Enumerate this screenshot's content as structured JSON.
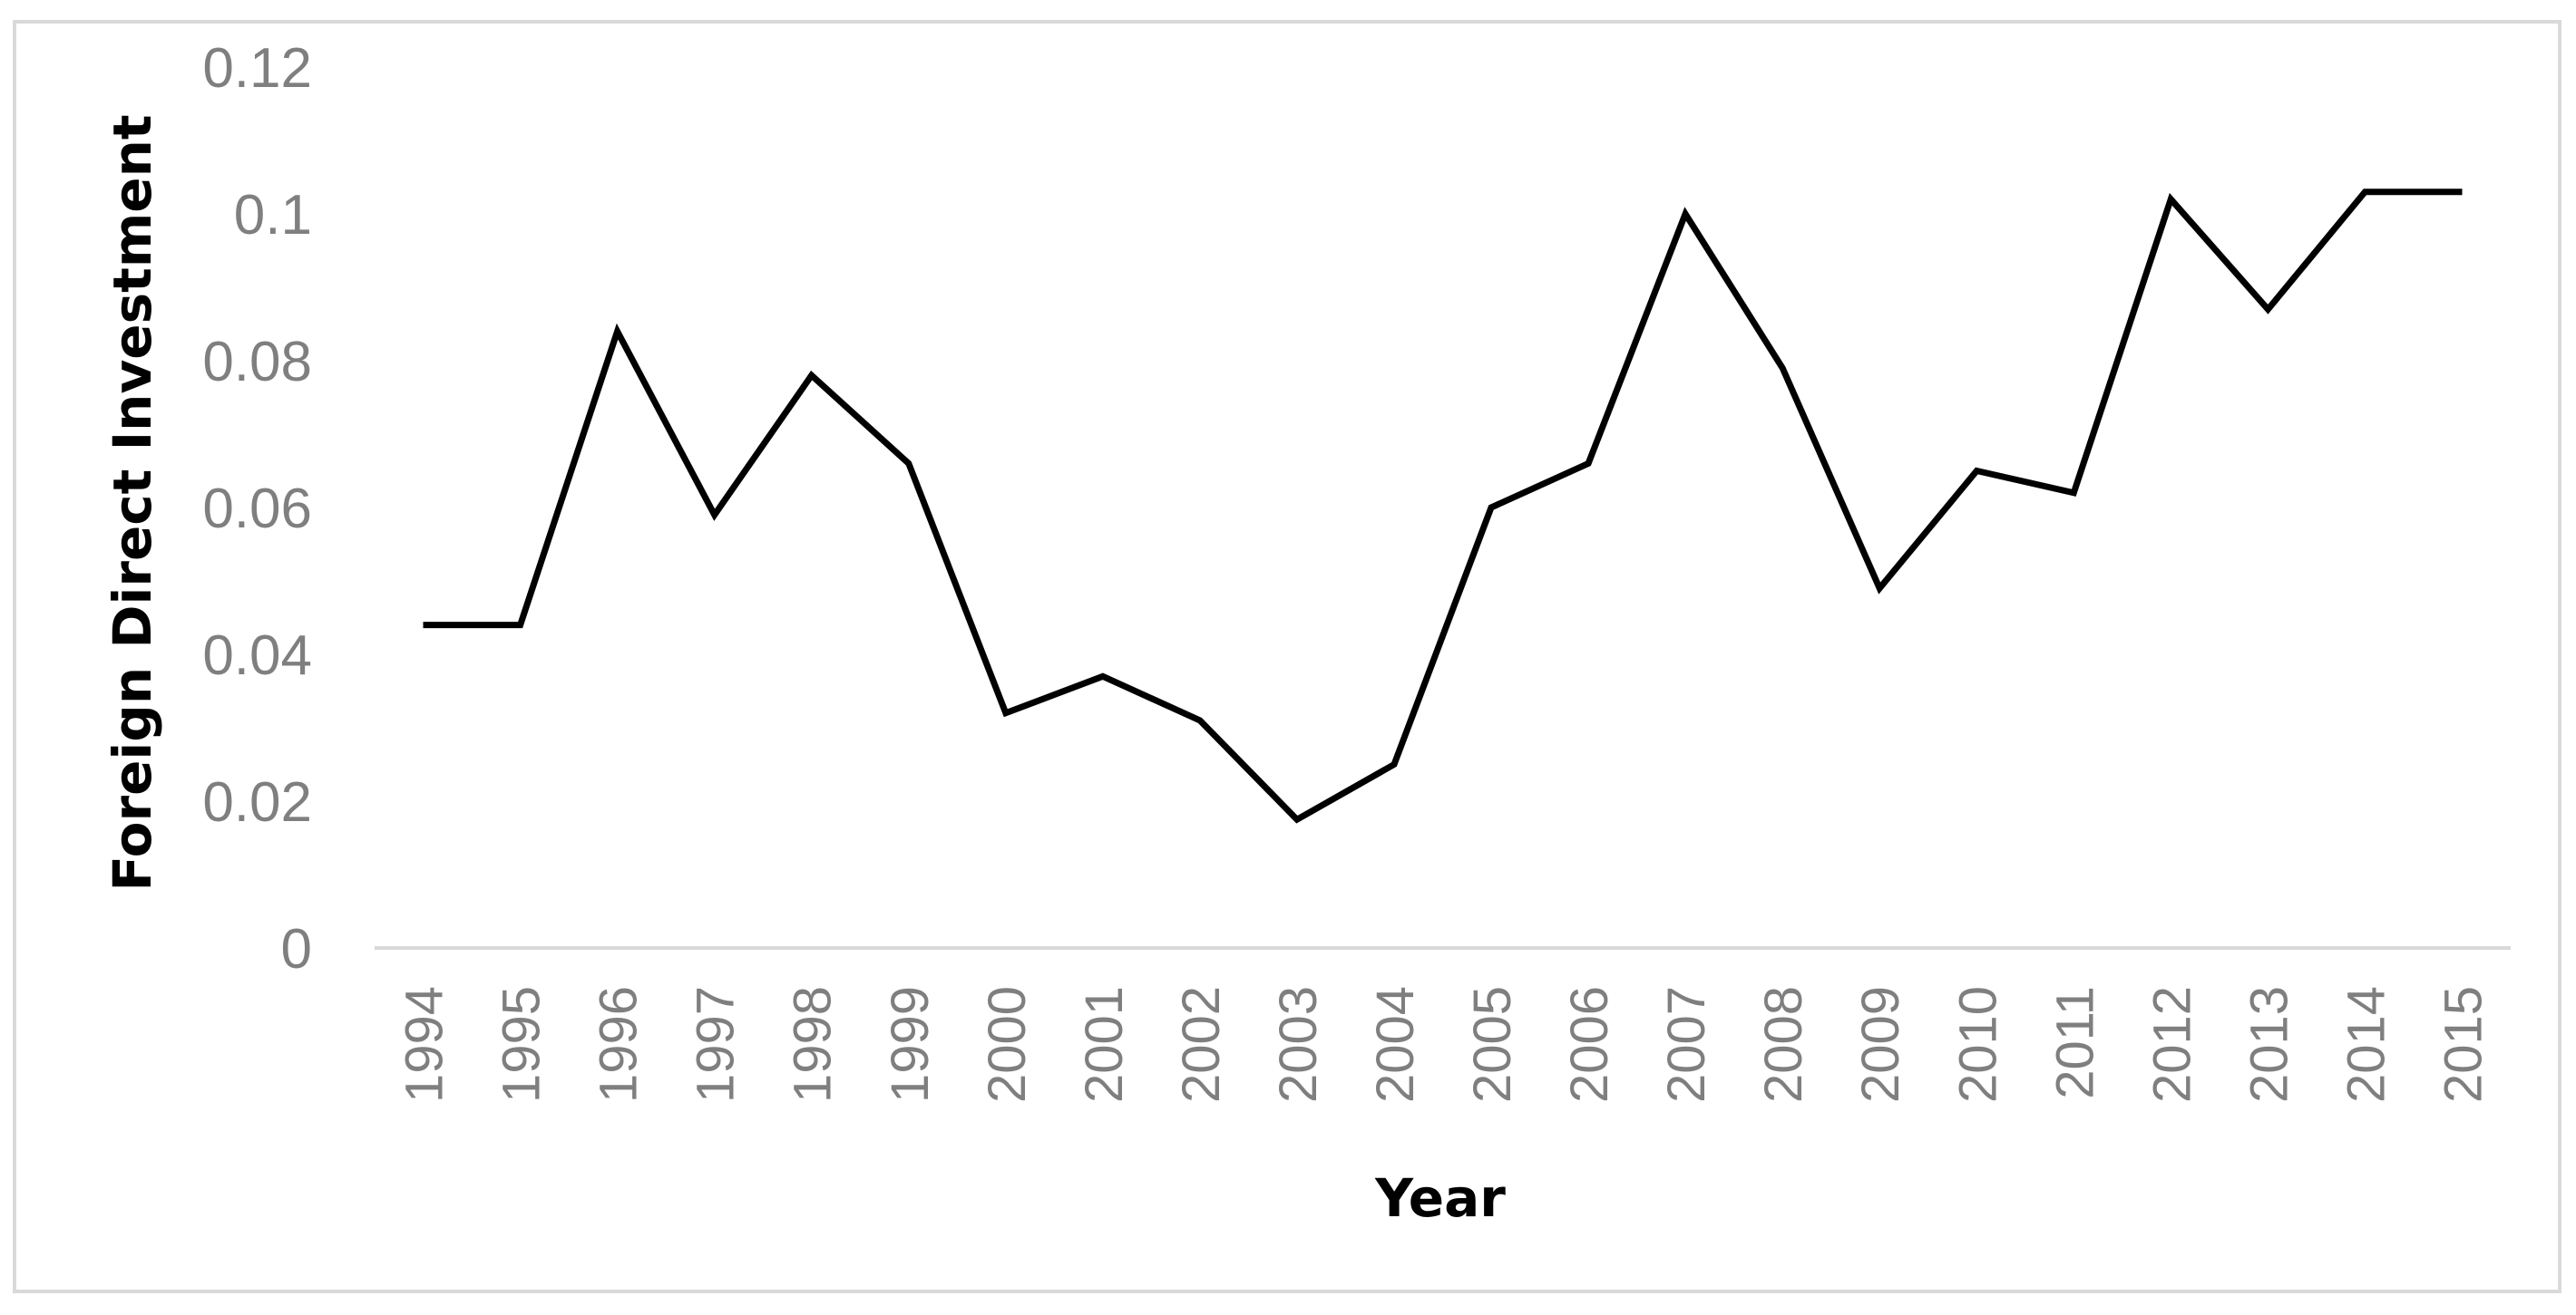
{
  "chart_data": {
    "type": "line",
    "title": "",
    "xlabel": "Year",
    "ylabel": "Foreign Direct Investment",
    "x": [
      "1994",
      "1995",
      "1996",
      "1997",
      "1998",
      "1999",
      "2000",
      "2001",
      "2002",
      "2003",
      "2004",
      "2005",
      "2006",
      "2007",
      "2008",
      "2009",
      "2010",
      "2011",
      "2012",
      "2013",
      "2014",
      "2015"
    ],
    "series": [
      {
        "values": [
          0.044,
          0.044,
          0.084,
          0.059,
          0.078,
          0.066,
          0.032,
          0.037,
          0.031,
          0.0175,
          0.025,
          0.06,
          0.066,
          0.1,
          0.079,
          0.049,
          0.065,
          0.062,
          0.102,
          0.087,
          0.103,
          0.103
        ]
      }
    ],
    "yticks": [
      "0",
      "0.02",
      "0.04",
      "0.06",
      "0.08",
      "0.1",
      "0.12"
    ],
    "ylim": [
      0,
      0.12
    ],
    "grid": false,
    "legend": "none",
    "colors": {
      "line": "#000000",
      "axis": "#d9d9d9",
      "tick_text": "#7f7f7f",
      "frame": "#d9d9d9"
    }
  }
}
